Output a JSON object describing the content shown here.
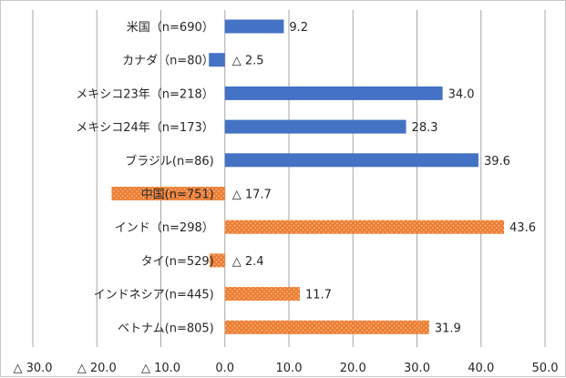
{
  "chart_data": {
    "type": "bar",
    "orientation": "horizontal",
    "title": "",
    "xlabel": "",
    "ylabel": "",
    "xlim": [
      -30,
      50
    ],
    "x_ticks": [
      -30,
      -20,
      -10,
      0,
      10,
      20,
      30,
      40,
      50
    ],
    "x_tick_labels": [
      "△ 30.0",
      "△ 20.0",
      "△ 10.0",
      "0.0",
      "10.0",
      "20.0",
      "30.0",
      "40.0",
      "50.0"
    ],
    "grid": "vertical",
    "legend": "none",
    "categories": [
      "米国（n=690）",
      "カナダ（n=80）",
      "メキシコ23年（n=218）",
      "メキシコ24年（n=173）",
      "ブラジル(n=86)",
      "中国(n=751)",
      "インド（n=298）",
      "タイ(n=529)",
      "インドネシア(n=445)",
      "ベトナム(n=805)"
    ],
    "values": [
      9.2,
      -2.5,
      34.0,
      28.3,
      39.6,
      -17.7,
      43.6,
      -2.4,
      11.7,
      31.9
    ],
    "value_labels": [
      "9.2",
      "△ 2.5",
      "34.0",
      "28.3",
      "39.6",
      "△ 17.7",
      "43.6",
      "△ 2.4",
      "11.7",
      "31.9"
    ],
    "bar_styles": [
      "solid",
      "solid",
      "solid",
      "solid",
      "solid",
      "dotted",
      "dotted",
      "dotted",
      "dotted",
      "dotted"
    ],
    "colors": {
      "solid": "#4472c4",
      "dotted": "#ed7d31",
      "dots": "#f8cbad"
    }
  }
}
